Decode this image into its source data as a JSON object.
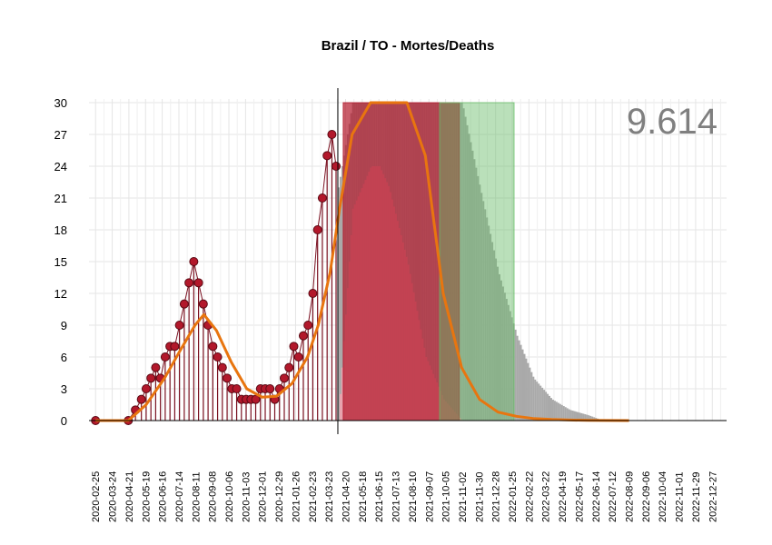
{
  "chart_data": {
    "type": "line",
    "title": "Brazil / TO - Mortes/Deaths",
    "annotation": "9.614",
    "xlabel": "",
    "ylabel": "",
    "ylim": [
      0,
      30
    ],
    "xlim": [
      "2020-02-14",
      "2023-01-20"
    ],
    "y_ticks": [
      "0",
      "3",
      "6",
      "9",
      "12",
      "15",
      "18",
      "21",
      "24",
      "27",
      "30"
    ],
    "x_ticks": [
      "2020-02-25",
      "2020-03-24",
      "2020-04-21",
      "2020-05-19",
      "2020-06-16",
      "2020-07-14",
      "2020-08-11",
      "2020-09-08",
      "2020-10-06",
      "2020-11-03",
      "2020-12-01",
      "2020-12-29",
      "2021-01-26",
      "2021-02-23",
      "2021-03-23",
      "2021-04-20",
      "2021-05-18",
      "2021-06-15",
      "2021-07-13",
      "2021-08-10",
      "2021-09-07",
      "2021-10-05",
      "2021-11-02",
      "2021-11-30",
      "2021-12-28",
      "2022-01-25",
      "2022-02-22",
      "2022-03-22",
      "2022-04-19",
      "2022-05-17",
      "2022-06-14",
      "2022-07-12",
      "2022-08-09",
      "2022-09-06",
      "2022-10-04",
      "2022-11-01",
      "2022-11-29",
      "2022-12-27"
    ],
    "grid": true,
    "vertical_line_date": "2021-04-07",
    "series": [
      {
        "kind": "observed_points",
        "color": "#b2182b",
        "x": [
          "2020-02-25",
          "2020-04-20",
          "2020-05-02",
          "2020-05-12",
          "2020-05-20",
          "2020-05-28",
          "2020-06-05",
          "2020-06-13",
          "2020-06-21",
          "2020-06-29",
          "2020-07-07",
          "2020-07-15",
          "2020-07-23",
          "2020-07-31",
          "2020-08-08",
          "2020-08-16",
          "2020-08-24",
          "2020-09-01",
          "2020-09-09",
          "2020-09-17",
          "2020-09-25",
          "2020-10-03",
          "2020-10-11",
          "2020-10-19",
          "2020-10-27",
          "2020-11-04",
          "2020-11-12",
          "2020-11-20",
          "2020-11-28",
          "2020-12-06",
          "2020-12-14",
          "2020-12-22",
          "2020-12-30",
          "2021-01-07",
          "2021-01-15",
          "2021-01-23",
          "2021-01-31",
          "2021-02-08",
          "2021-02-16",
          "2021-02-24",
          "2021-03-04",
          "2021-03-12",
          "2021-03-20",
          "2021-03-28",
          "2021-04-04"
        ],
        "values": [
          0,
          0,
          1,
          2,
          3,
          4,
          5,
          4,
          6,
          7,
          7,
          9,
          11,
          13,
          15,
          13,
          11,
          9,
          7,
          6,
          5,
          4,
          3,
          3,
          2,
          2,
          2,
          2,
          3,
          3,
          3,
          2,
          3,
          4,
          5,
          7,
          6,
          8,
          9,
          12,
          18,
          21,
          25,
          27,
          24
        ]
      },
      {
        "kind": "smoothed_trend",
        "color": "#e8750f",
        "x": [
          "2020-02-25",
          "2020-04-20",
          "2020-05-20",
          "2020-06-20",
          "2020-07-15",
          "2020-08-10",
          "2020-08-25",
          "2020-09-15",
          "2020-10-10",
          "2020-11-05",
          "2020-12-01",
          "2020-12-25",
          "2021-01-20",
          "2021-02-15",
          "2021-03-05",
          "2021-03-25",
          "2021-04-10",
          "2021-05-01",
          "2021-06-01",
          "2021-07-01",
          "2021-08-01",
          "2021-09-01",
          "2021-10-01",
          "2021-11-01",
          "2021-12-01",
          "2022-01-01",
          "2022-02-01",
          "2022-03-01",
          "2022-04-01",
          "2022-05-01",
          "2022-06-01",
          "2022-07-01",
          "2022-08-09"
        ],
        "values": [
          0,
          0,
          1.5,
          4,
          6.5,
          9,
          10,
          8.5,
          5.5,
          3,
          2.2,
          2.3,
          3.5,
          6,
          9,
          14,
          20,
          27,
          30,
          30,
          30,
          25,
          12,
          5,
          2,
          0.8,
          0.4,
          0.2,
          0.1,
          0.05,
          0.02,
          0.01,
          0
        ]
      },
      {
        "kind": "projection_band_upper",
        "color": "#a9a9a9",
        "x": [
          "2021-04-07",
          "2021-05-01",
          "2021-09-01",
          "2021-10-01",
          "2021-11-01",
          "2021-12-01",
          "2022-01-01",
          "2022-02-01",
          "2022-03-01",
          "2022-04-01",
          "2022-05-01",
          "2022-06-01",
          "2022-06-25"
        ],
        "values": [
          22,
          30,
          30,
          30,
          30,
          22,
          14,
          8,
          4,
          2,
          1,
          0.5,
          0
        ]
      },
      {
        "kind": "projection_band_lower",
        "color": "#e9a3ae",
        "x": [
          "2021-04-07",
          "2021-05-01",
          "2021-06-01",
          "2021-06-15",
          "2021-07-01",
          "2021-08-01",
          "2021-09-01",
          "2021-10-01",
          "2021-11-01"
        ],
        "values": [
          0,
          20,
          24,
          24,
          22,
          15,
          6,
          2,
          0
        ]
      }
    ],
    "shaded_regions": [
      {
        "from": "2021-04-16",
        "to": "2021-10-28",
        "color": "#b2182b",
        "opacity": 0.7
      },
      {
        "from": "2021-09-25",
        "to": "2022-01-28",
        "color": "#66bb66",
        "opacity": 0.45
      }
    ]
  }
}
